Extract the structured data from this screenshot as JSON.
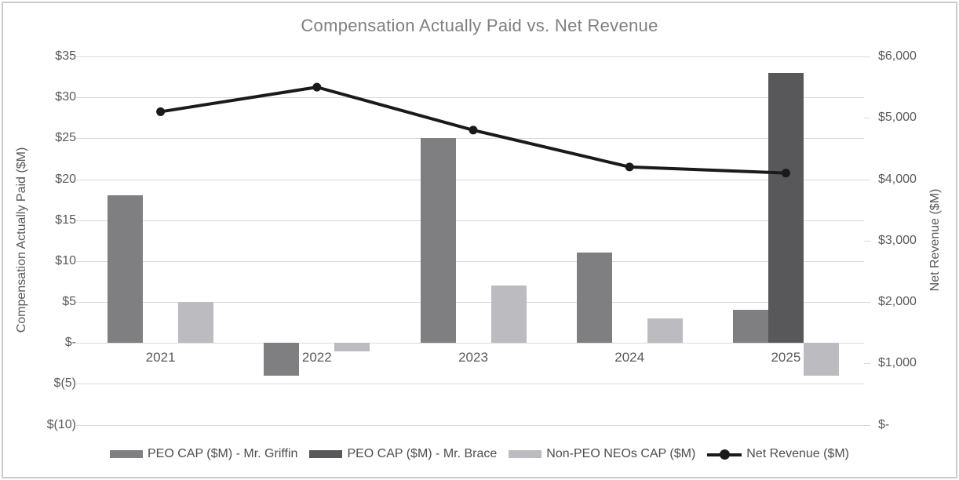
{
  "title": "Compensation Actually Paid vs. Net Revenue",
  "chart_data": {
    "type": "bar",
    "subtype": "combo-bar-line-dual-axis",
    "categories": [
      "2021",
      "2022",
      "2023",
      "2024",
      "2025"
    ],
    "series": [
      {
        "name": "PEO CAP ($M) - Mr. Griffin",
        "kind": "bar",
        "axis": "left",
        "color": "#7f7f82",
        "values": [
          18,
          -4,
          25,
          11,
          4
        ]
      },
      {
        "name": "PEO CAP ($M) - Mr. Brace",
        "kind": "bar",
        "axis": "left",
        "color": "#58585b",
        "values": [
          null,
          null,
          null,
          null,
          33
        ]
      },
      {
        "name": "Non-PEO NEOs CAP ($M)",
        "kind": "bar",
        "axis": "left",
        "color": "#bcbcc0",
        "values": [
          5,
          -1,
          7,
          3,
          -4
        ]
      },
      {
        "name": "Net Revenue ($M)",
        "kind": "line",
        "axis": "right",
        "color": "#1a1a1a",
        "values": [
          5100,
          5500,
          4800,
          4200,
          4100
        ]
      }
    ],
    "left_axis": {
      "title": "Compensation Actually Paid ($M)",
      "min": -10,
      "max": 35,
      "step": 5,
      "labels": [
        "$35",
        "$30",
        "$25",
        "$20",
        "$15",
        "$10",
        "$5",
        "$-",
        "$(5)",
        "$(10)"
      ]
    },
    "right_axis": {
      "title": "Net Revenue ($M)",
      "min": 0,
      "max": 6000,
      "step": 1000,
      "labels": [
        "$6,000",
        "$5,000",
        "$4,000",
        "$3,000",
        "$2,000",
        "$1,000",
        "$-"
      ]
    },
    "grid": true,
    "legend_position": "bottom"
  },
  "colors": {
    "title_text": "#7f7f7f",
    "axis_text": "#595959",
    "legend_text": "#4d4d4d",
    "gridline": "#d9d9d9",
    "frame_border": "#cbcbcb",
    "background": "#ffffff"
  }
}
